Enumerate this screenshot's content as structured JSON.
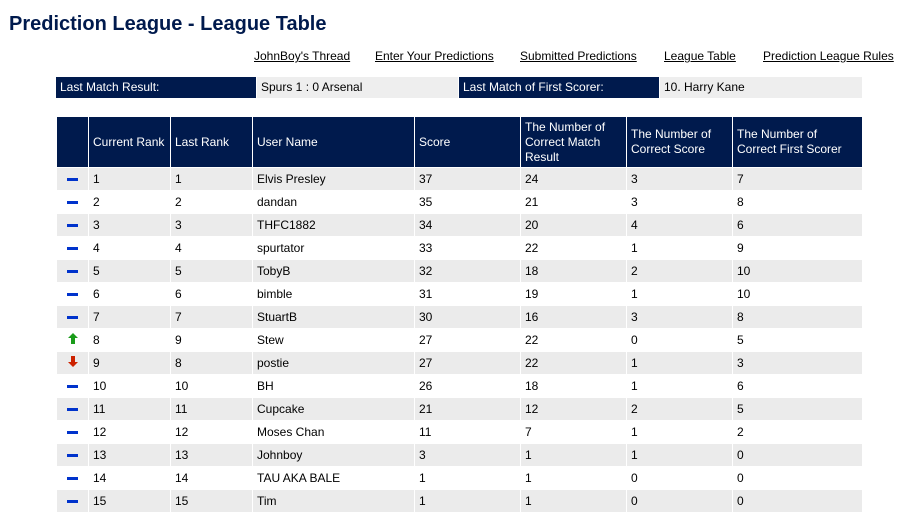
{
  "page": {
    "title": "Prediction League - League Table"
  },
  "nav": [
    {
      "label": "JohnBoy's Thread"
    },
    {
      "label": "Enter Your Predictions"
    },
    {
      "label": "Submitted Predictions"
    },
    {
      "label": "League Table"
    },
    {
      "label": "Prediction League Rules"
    }
  ],
  "info": {
    "last_match_label": "Last Match Result:",
    "last_match_value": "Spurs 1 : 0 Arsenal",
    "first_scorer_label": "Last Match of First Scorer:",
    "first_scorer_value": "10. Harry Kane"
  },
  "colors": {
    "header_bg": "#001a4d",
    "row_alt_bg": "#ebebeb",
    "steady": "#0033cc",
    "up": "#1a9c1a",
    "down": "#cc2200"
  },
  "table": {
    "headers": {
      "current_rank": "Current Rank",
      "last_rank": "Last Rank",
      "user_name": "User Name",
      "score": "Score",
      "correct_result": "The Number of Correct Match Result",
      "correct_score": "The Number of Correct Score",
      "correct_scorer": "The Number of Correct First Scorer"
    },
    "rows": [
      {
        "movement": "steady-icon",
        "current": "1",
        "last": "1",
        "user": "Elvis Presley",
        "score": "37",
        "result": "24",
        "correct_score": "3",
        "scorer": "7"
      },
      {
        "movement": "steady-icon",
        "current": "2",
        "last": "2",
        "user": "dandan",
        "score": "35",
        "result": "21",
        "correct_score": "3",
        "scorer": "8"
      },
      {
        "movement": "steady-icon",
        "current": "3",
        "last": "3",
        "user": "THFC1882",
        "score": "34",
        "result": "20",
        "correct_score": "4",
        "scorer": "6"
      },
      {
        "movement": "steady-icon",
        "current": "4",
        "last": "4",
        "user": "spurtator",
        "score": "33",
        "result": "22",
        "correct_score": "1",
        "scorer": "9"
      },
      {
        "movement": "steady-icon",
        "current": "5",
        "last": "5",
        "user": "TobyB",
        "score": "32",
        "result": "18",
        "correct_score": "2",
        "scorer": "10"
      },
      {
        "movement": "steady-icon",
        "current": "6",
        "last": "6",
        "user": "bimble",
        "score": "31",
        "result": "19",
        "correct_score": "1",
        "scorer": "10"
      },
      {
        "movement": "steady-icon",
        "current": "7",
        "last": "7",
        "user": "StuartB",
        "score": "30",
        "result": "16",
        "correct_score": "3",
        "scorer": "8"
      },
      {
        "movement": "up-arrow-icon",
        "current": "8",
        "last": "9",
        "user": "Stew",
        "score": "27",
        "result": "22",
        "correct_score": "0",
        "scorer": "5"
      },
      {
        "movement": "down-arrow-icon",
        "current": "9",
        "last": "8",
        "user": "postie",
        "score": "27",
        "result": "22",
        "correct_score": "1",
        "scorer": "3"
      },
      {
        "movement": "steady-icon",
        "current": "10",
        "last": "10",
        "user": "BH",
        "score": "26",
        "result": "18",
        "correct_score": "1",
        "scorer": "6"
      },
      {
        "movement": "steady-icon",
        "current": "11",
        "last": "11",
        "user": "Cupcake",
        "score": "21",
        "result": "12",
        "correct_score": "2",
        "scorer": "5"
      },
      {
        "movement": "steady-icon",
        "current": "12",
        "last": "12",
        "user": "Moses Chan",
        "score": "11",
        "result": "7",
        "correct_score": "1",
        "scorer": "2"
      },
      {
        "movement": "steady-icon",
        "current": "13",
        "last": "13",
        "user": "Johnboy",
        "score": "3",
        "result": "1",
        "correct_score": "1",
        "scorer": "0"
      },
      {
        "movement": "steady-icon",
        "current": "14",
        "last": "14",
        "user": "TAU AKA BALE",
        "score": "1",
        "result": "1",
        "correct_score": "0",
        "scorer": "0"
      },
      {
        "movement": "steady-icon",
        "current": "15",
        "last": "15",
        "user": "Tim",
        "score": "1",
        "result": "1",
        "correct_score": "0",
        "scorer": "0"
      }
    ]
  }
}
